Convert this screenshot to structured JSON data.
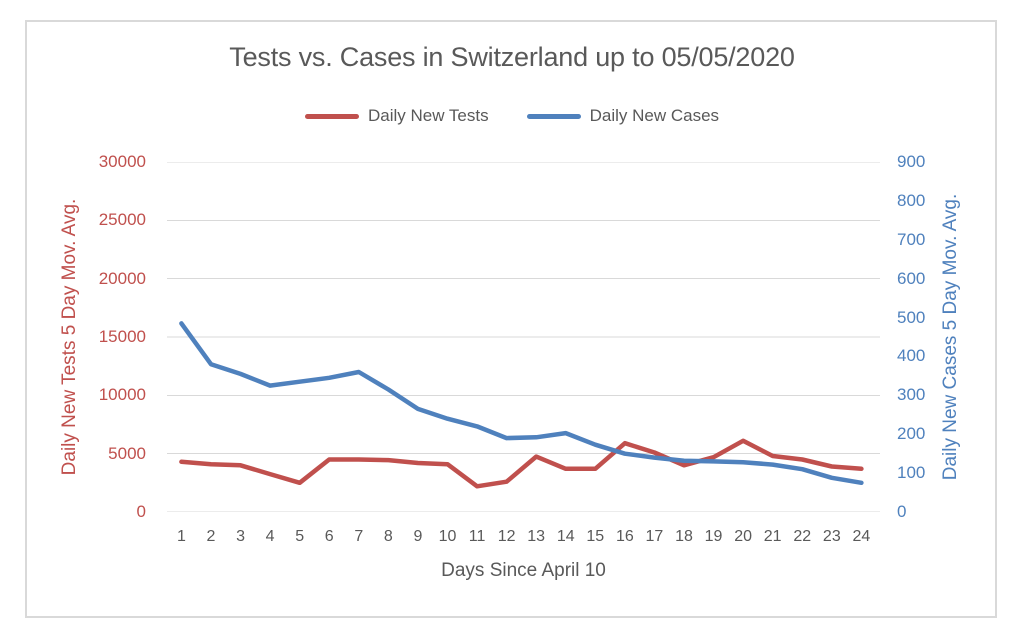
{
  "chart_data": {
    "type": "line",
    "title": "Tests vs. Cases in Switzerland up to 05/05/2020",
    "xlabel": "Days Since April 10",
    "x": [
      1,
      2,
      3,
      4,
      5,
      6,
      7,
      8,
      9,
      10,
      11,
      12,
      13,
      14,
      15,
      16,
      17,
      18,
      19,
      20,
      21,
      22,
      23,
      24
    ],
    "series": [
      {
        "name": "Daily New Tests",
        "axis": "left",
        "color": "#C0504D",
        "values": [
          4300,
          4100,
          4000,
          3250,
          2500,
          4500,
          4500,
          4450,
          4200,
          4100,
          2200,
          2600,
          4750,
          3700,
          3700,
          5900,
          5100,
          4000,
          4700,
          6100,
          4800,
          4500,
          3900,
          3700
        ]
      },
      {
        "name": "Daily New Cases",
        "axis": "right",
        "color": "#4F81BD",
        "values": [
          485,
          380,
          355,
          325,
          335,
          345,
          360,
          315,
          265,
          240,
          220,
          190,
          192,
          203,
          173,
          150,
          140,
          132,
          130,
          128,
          122,
          110,
          88,
          75
        ]
      }
    ],
    "left_axis": {
      "title": "Daily New Tests 5 Day Mov. Avg.",
      "min": 0,
      "max": 30000,
      "ticks": [
        0,
        5000,
        10000,
        15000,
        20000,
        25000,
        30000
      ],
      "color": "#C0504D"
    },
    "right_axis": {
      "title": "Daily New Cases 5 Day Mov. Avg.",
      "min": 0,
      "max": 900,
      "ticks": [
        0,
        100,
        200,
        300,
        400,
        500,
        600,
        700,
        800,
        900
      ],
      "color": "#4F81BD"
    },
    "grid": true,
    "legend_position": "top"
  },
  "colors": {
    "text": "#595959",
    "gridline": "#D9D9D9",
    "border": "#D9D9D9",
    "background": "#FFFFFF"
  }
}
